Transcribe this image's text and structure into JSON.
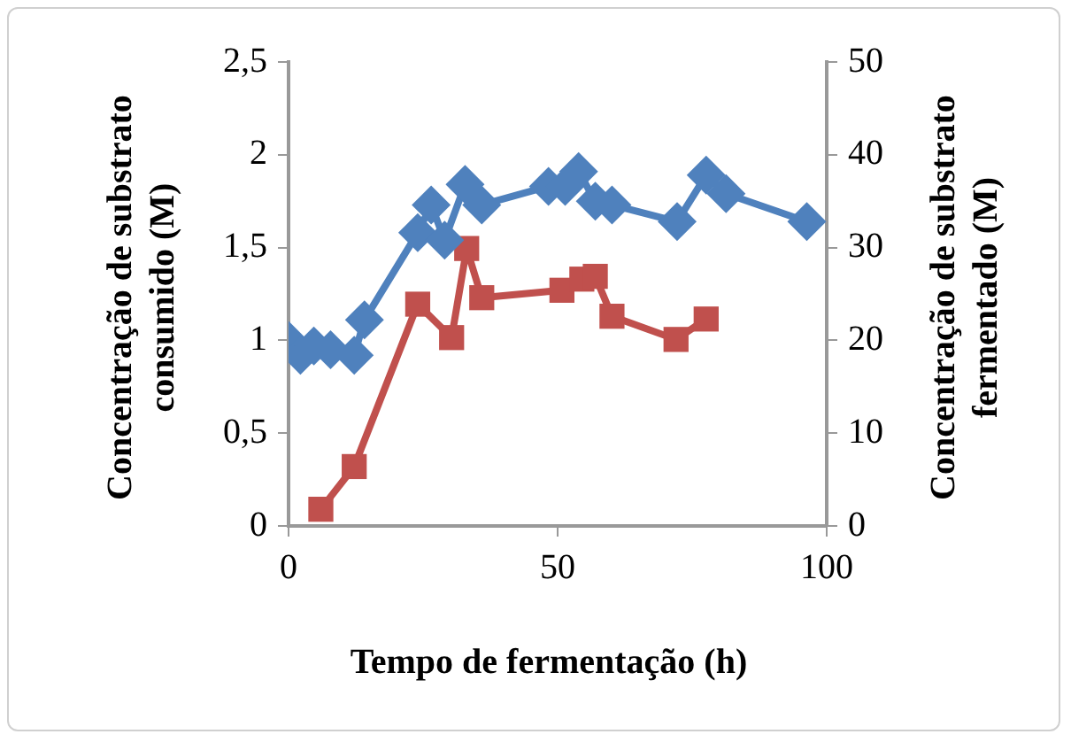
{
  "chart_data": {
    "type": "line",
    "xlabel": "Tempo de fermentação (h)",
    "ylabel": "Concentração de substrato consumido (M)",
    "y2label": "Concentração de substrato fermentado (M)",
    "xlim": [
      0,
      100
    ],
    "xticks": [
      0,
      50,
      100
    ],
    "ylim": [
      0,
      2.5
    ],
    "yticks": [
      0,
      {
        "value": 0.5,
        "label": "0,5"
      },
      1,
      {
        "value": 1.5,
        "label": "1,5"
      },
      2,
      {
        "value": 2.5,
        "label": "2,5"
      }
    ],
    "y2lim": [
      0,
      50
    ],
    "y2ticks": [
      0,
      10,
      20,
      30,
      40,
      50
    ],
    "series": [
      {
        "color": "#4f81bd",
        "marker": "diamond",
        "x": [
          0,
          2.2,
          4.7,
          7.8,
          12.2,
          14.1,
          24,
          26.5,
          29,
          32.8,
          35.9,
          48.3,
          51.4,
          53.9,
          57,
          60.1,
          72.2,
          77.6,
          81.3,
          96.3
        ],
        "values": [
          1.0,
          0.92,
          0.97,
          0.95,
          0.92,
          1.11,
          1.58,
          1.73,
          1.54,
          1.84,
          1.73,
          1.83,
          1.83,
          1.91,
          1.75,
          1.73,
          1.64,
          1.89,
          1.79,
          1.64
        ]
      },
      {
        "color": "#c0504d",
        "marker": "square",
        "axis": "y2",
        "x": [
          6,
          12.2,
          24,
          30.3,
          33.1,
          35.9,
          50.8,
          54.5,
          57,
          60.1,
          72,
          77.6
        ],
        "values": [
          1.8,
          6.4,
          23.9,
          20.3,
          29.9,
          24.6,
          25.4,
          26.6,
          26.9,
          22.6,
          20.1,
          22.3
        ]
      }
    ]
  }
}
